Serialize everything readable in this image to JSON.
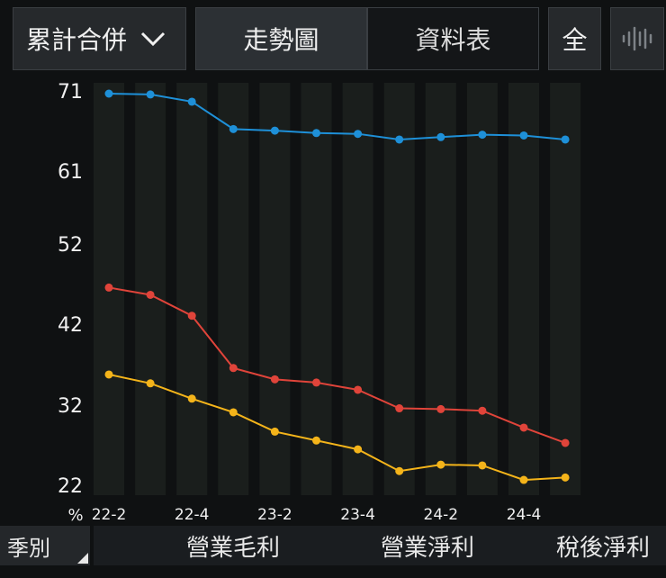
{
  "toolbar": {
    "dropdown_label": "累計合併",
    "tab_trend": "走勢圖",
    "tab_table": "資料表",
    "full_label": "全"
  },
  "bottom": {
    "season_label": "季別"
  },
  "colors": {
    "gross": "#1e90d8",
    "operating": "#e0443a",
    "net": "#f4b41a"
  },
  "chart_data": {
    "type": "line",
    "unit_label": "%",
    "ylim": [
      22,
      71
    ],
    "y_ticks": [
      "71",
      "61",
      "52",
      "42",
      "32",
      "22"
    ],
    "x_tick_labels": [
      "22-2",
      "22-4",
      "23-2",
      "23-4",
      "24-2",
      "24-4"
    ],
    "x": [
      "22-2",
      "22-3",
      "22-4",
      "23-1",
      "23-2",
      "23-3",
      "23-4",
      "24-1",
      "24-2",
      "24-3",
      "24-4",
      "25-1"
    ],
    "series": [
      {
        "name": "營業毛利",
        "values": [
          71.0,
          70.9,
          70.0,
          66.6,
          66.4,
          66.1,
          66.0,
          65.3,
          65.6,
          65.9,
          65.8,
          65.3
        ]
      },
      {
        "name": "營業淨利",
        "values": [
          46.9,
          46.0,
          43.4,
          36.9,
          35.5,
          35.1,
          34.2,
          31.9,
          31.8,
          31.6,
          29.5,
          27.6
        ]
      },
      {
        "name": "稅後淨利",
        "values": [
          36.1,
          35.0,
          33.1,
          31.4,
          29.0,
          27.9,
          26.8,
          24.1,
          24.9,
          24.8,
          23.0,
          23.3
        ]
      }
    ]
  }
}
